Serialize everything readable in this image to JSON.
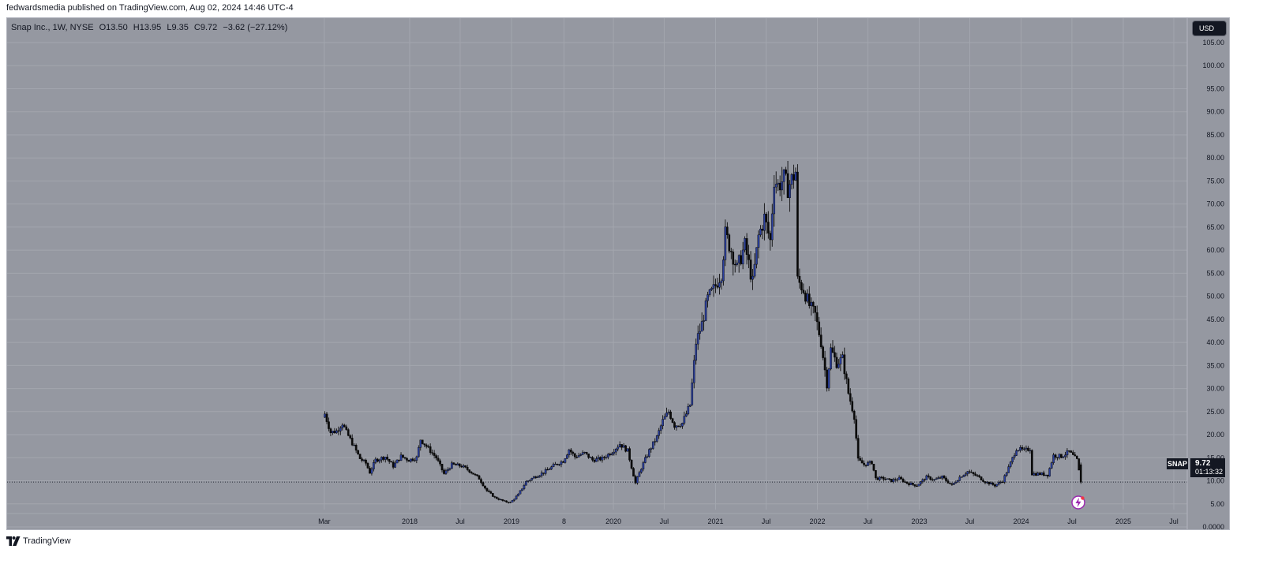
{
  "header": {
    "publish_line": "fedwardsmedia published on TradingView.com, Aug 02, 2024 14:46 UTC-4"
  },
  "legend": {
    "title": "Snap Inc., 1W, NYSE",
    "open": "O13.50",
    "high": "H13.95",
    "low": "L9.35",
    "close": "C9.72",
    "change": "−3.62 (−27.12%)"
  },
  "price_axis": {
    "currency": "USD"
  },
  "last_price": {
    "symbol": "SNAP",
    "price": "9.72",
    "countdown": "01:13:32"
  },
  "footer": {
    "brand": "TradingView"
  },
  "colors": {
    "background": "#9598a1",
    "up_candle": "#2a3f9e",
    "down_candle": "#0b0b0b",
    "grid": "#a3a6ae",
    "text": "#131722"
  },
  "icons": {
    "footer_logo": "tradingview-logo-icon",
    "bottom_badge": "lightning-icon"
  },
  "chart_data": {
    "type": "candlestick",
    "title": "Snap Inc., 1W, NYSE",
    "ylabel": "USD",
    "ylim": [
      0,
      105
    ],
    "y_ticks": [
      "0.0000",
      "5.00",
      "10.00",
      "15.00",
      "20.00",
      "25.00",
      "30.00",
      "35.00",
      "40.00",
      "45.00",
      "50.00",
      "55.00",
      "60.00",
      "65.00",
      "70.00",
      "75.00",
      "80.00",
      "85.00",
      "90.00",
      "95.00",
      "100.00",
      "105.00"
    ],
    "x_ticks": [
      {
        "label": "Mar",
        "date": "2017-03-01"
      },
      {
        "label": "2018",
        "date": "2018-01-01"
      },
      {
        "label": "Jul",
        "date": "2018-07-01"
      },
      {
        "label": "2019",
        "date": "2019-01-01"
      },
      {
        "label": "8",
        "date": "2019-07-08"
      },
      {
        "label": "2020",
        "date": "2020-01-01"
      },
      {
        "label": "Jul",
        "date": "2020-07-01"
      },
      {
        "label": "2021",
        "date": "2021-01-01"
      },
      {
        "label": "Jul",
        "date": "2021-07-01"
      },
      {
        "label": "2022",
        "date": "2022-01-01"
      },
      {
        "label": "Jul",
        "date": "2022-07-01"
      },
      {
        "label": "2023",
        "date": "2023-01-01"
      },
      {
        "label": "Jul",
        "date": "2023-07-01"
      },
      {
        "label": "2024",
        "date": "2024-01-01"
      },
      {
        "label": "Jul",
        "date": "2024-07-01"
      },
      {
        "label": "2025",
        "date": "2025-01-01"
      },
      {
        "label": "Jul",
        "date": "2025-07-01"
      }
    ],
    "last_price": 9.72,
    "grid": true,
    "series_points": [
      [
        "2017-03-03",
        24.5
      ],
      [
        "2017-03-24",
        20.5
      ],
      [
        "2017-04-14",
        20.8
      ],
      [
        "2017-05-05",
        22.5
      ],
      [
        "2017-05-19",
        20.5
      ],
      [
        "2017-06-09",
        18.2
      ],
      [
        "2017-07-07",
        14.8
      ],
      [
        "2017-07-28",
        13.8
      ],
      [
        "2017-08-11",
        11.8
      ],
      [
        "2017-09-01",
        14.5
      ],
      [
        "2017-10-06",
        15.2
      ],
      [
        "2017-11-03",
        13.2
      ],
      [
        "2017-12-01",
        15.3
      ],
      [
        "2017-12-29",
        14.5
      ],
      [
        "2018-01-26",
        15.0
      ],
      [
        "2018-02-09",
        19.0
      ],
      [
        "2018-03-02",
        17.5
      ],
      [
        "2018-04-06",
        15.0
      ],
      [
        "2018-05-04",
        11.5
      ],
      [
        "2018-06-01",
        13.5
      ],
      [
        "2018-07-06",
        13.2
      ],
      [
        "2018-08-03",
        12.2
      ],
      [
        "2018-09-07",
        10.5
      ],
      [
        "2018-10-05",
        7.8
      ],
      [
        "2018-11-02",
        6.4
      ],
      [
        "2018-12-07",
        5.5
      ],
      [
        "2018-12-28",
        5.3
      ],
      [
        "2019-01-25",
        7.0
      ],
      [
        "2019-02-22",
        9.8
      ],
      [
        "2019-03-29",
        11.0
      ],
      [
        "2019-04-26",
        11.8
      ],
      [
        "2019-06-07",
        13.5
      ],
      [
        "2019-07-05",
        14.3
      ],
      [
        "2019-07-26",
        16.8
      ],
      [
        "2019-08-16",
        15.2
      ],
      [
        "2019-09-20",
        16.0
      ],
      [
        "2019-10-18",
        14.5
      ],
      [
        "2019-11-22",
        14.8
      ],
      [
        "2019-12-27",
        16.3
      ],
      [
        "2020-01-24",
        18.0
      ],
      [
        "2020-02-21",
        16.5
      ],
      [
        "2020-03-20",
        9.5
      ],
      [
        "2020-04-10",
        12.8
      ],
      [
        "2020-05-08",
        16.5
      ],
      [
        "2020-06-05",
        19.5
      ],
      [
        "2020-06-26",
        23.0
      ],
      [
        "2020-07-17",
        25.0
      ],
      [
        "2020-08-07",
        22.0
      ],
      [
        "2020-09-04",
        22.5
      ],
      [
        "2020-10-02",
        26.5
      ],
      [
        "2020-10-23",
        40.0
      ],
      [
        "2020-11-13",
        44.0
      ],
      [
        "2020-12-04",
        49.5
      ],
      [
        "2020-12-25",
        51.5
      ],
      [
        "2021-01-22",
        55.0
      ],
      [
        "2021-02-05",
        63.5
      ],
      [
        "2021-02-26",
        60.0
      ],
      [
        "2021-03-19",
        56.0
      ],
      [
        "2021-04-16",
        61.0
      ],
      [
        "2021-05-14",
        53.0
      ],
      [
        "2021-06-04",
        63.0
      ],
      [
        "2021-06-25",
        67.0
      ],
      [
        "2021-07-16",
        62.0
      ],
      [
        "2021-07-30",
        75.5
      ],
      [
        "2021-08-13",
        74.0
      ],
      [
        "2021-09-03",
        75.5
      ],
      [
        "2021-09-17",
        73.5
      ],
      [
        "2021-10-15",
        77.0
      ],
      [
        "2021-10-22",
        53.5
      ],
      [
        "2021-11-12",
        51.5
      ],
      [
        "2021-12-03",
        48.0
      ],
      [
        "2021-12-24",
        46.0
      ],
      [
        "2022-01-14",
        40.0
      ],
      [
        "2022-02-04",
        31.0
      ],
      [
        "2022-02-18",
        38.5
      ],
      [
        "2022-03-11",
        35.5
      ],
      [
        "2022-04-01",
        36.5
      ],
      [
        "2022-04-22",
        29.0
      ],
      [
        "2022-05-13",
        24.0
      ],
      [
        "2022-05-27",
        14.5
      ],
      [
        "2022-06-17",
        13.5
      ],
      [
        "2022-07-15",
        14.0
      ],
      [
        "2022-07-29",
        10.5
      ],
      [
        "2022-08-26",
        10.5
      ],
      [
        "2022-09-23",
        10.0
      ],
      [
        "2022-10-21",
        10.5
      ],
      [
        "2022-11-18",
        9.5
      ],
      [
        "2022-12-23",
        9.0
      ],
      [
        "2023-01-27",
        10.8
      ],
      [
        "2023-02-24",
        10.2
      ],
      [
        "2023-03-24",
        10.8
      ],
      [
        "2023-04-28",
        9.0
      ],
      [
        "2023-05-26",
        10.8
      ],
      [
        "2023-06-23",
        12.0
      ],
      [
        "2023-07-28",
        11.0
      ],
      [
        "2023-08-25",
        9.8
      ],
      [
        "2023-09-29",
        9.0
      ],
      [
        "2023-10-27",
        10.0
      ],
      [
        "2023-11-24",
        13.8
      ],
      [
        "2023-12-15",
        17.0
      ],
      [
        "2024-01-12",
        16.5
      ],
      [
        "2024-02-02",
        17.0
      ],
      [
        "2024-02-09",
        11.5
      ],
      [
        "2024-03-08",
        11.5
      ],
      [
        "2024-04-05",
        11.3
      ],
      [
        "2024-04-26",
        15.5
      ],
      [
        "2024-05-24",
        15.3
      ],
      [
        "2024-06-21",
        16.3
      ],
      [
        "2024-07-19",
        14.5
      ],
      [
        "2024-08-02",
        9.72
      ]
    ],
    "series_note": "approximate weekly closes"
  }
}
